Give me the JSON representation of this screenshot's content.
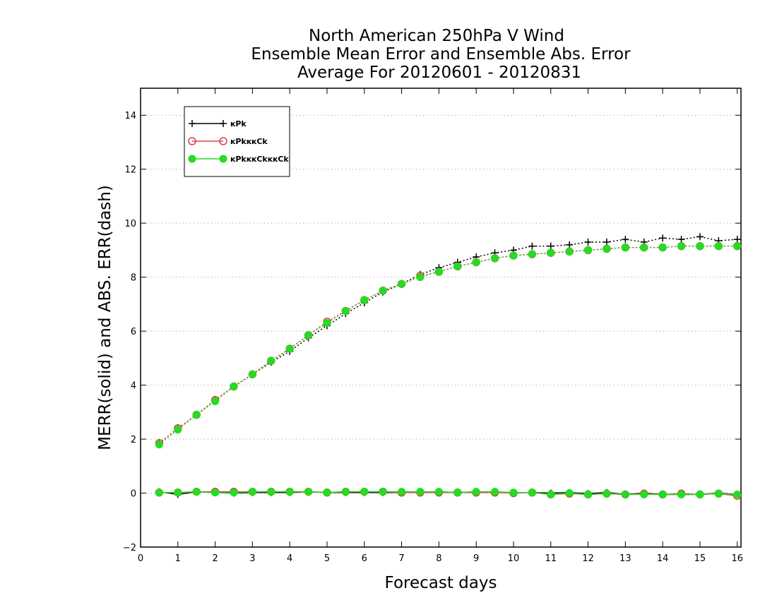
{
  "chart_data": {
    "type": "line",
    "title": [
      "North American 250hPa V Wind",
      "Ensemble Mean Error and Ensemble Abs. Error",
      "Average For 20120601 - 20120831"
    ],
    "xlabel": "Forecast days",
    "ylabel": "MERR(solid) and ABS. ERR(dash)",
    "xlim": [
      0,
      16.1
    ],
    "ylim": [
      -2,
      15
    ],
    "xticks": [
      "0",
      "1",
      "2",
      "3",
      "4",
      "5",
      "6",
      "7",
      "8",
      "9",
      "10",
      "11",
      "12",
      "13",
      "14",
      "15",
      "16"
    ],
    "yticks": [
      "−2",
      "0",
      "2",
      "4",
      "6",
      "8",
      "10",
      "12",
      "14"
    ],
    "grid": "horizontal dotted",
    "legend": {
      "placement": "top-left",
      "entries": [
        "ĸPk",
        "ĸPkĸĸCk",
        "ĸPkĸĸCkĸĸCk"
      ]
    },
    "x": [
      0.5,
      1,
      1.5,
      2,
      2.5,
      3,
      3.5,
      4,
      4.5,
      5,
      5.5,
      6,
      6.5,
      7,
      7.5,
      8,
      8.5,
      9,
      9.5,
      10,
      10.5,
      11,
      11.5,
      12,
      12.5,
      13,
      13.5,
      14,
      14.5,
      15,
      15.5,
      16
    ],
    "series": [
      {
        "color": "#000000",
        "marker": "plus",
        "mean_error": [
          0.05,
          -0.05,
          0.05,
          0.02,
          0.0,
          0.02,
          0.02,
          0.02,
          0.05,
          0.02,
          0.02,
          0.02,
          0.02,
          0.02,
          0.02,
          0.05,
          0.02,
          0.05,
          0.02,
          0.02,
          0.02,
          0.0,
          0.02,
          -0.02,
          0.02,
          -0.05,
          0.0,
          -0.05,
          -0.05,
          -0.05,
          0.0,
          -0.05
        ],
        "abs_error": [
          1.85,
          2.4,
          2.9,
          3.45,
          3.95,
          4.4,
          4.85,
          5.25,
          5.75,
          6.2,
          6.65,
          7.05,
          7.45,
          7.75,
          8.1,
          8.35,
          8.55,
          8.75,
          8.9,
          9.0,
          9.15,
          9.15,
          9.2,
          9.3,
          9.3,
          9.4,
          9.3,
          9.45,
          9.4,
          9.5,
          9.35,
          9.4
        ]
      },
      {
        "color": "#e04040",
        "marker": "open-circle",
        "mean_error": [
          0.02,
          0.02,
          0.05,
          0.05,
          0.05,
          0.05,
          0.05,
          0.05,
          0.05,
          0.02,
          0.05,
          0.05,
          0.05,
          0.02,
          0.02,
          0.02,
          0.02,
          0.02,
          0.02,
          0.0,
          0.02,
          -0.05,
          -0.02,
          -0.05,
          -0.02,
          -0.05,
          -0.02,
          -0.05,
          -0.02,
          -0.05,
          -0.02,
          -0.1
        ],
        "abs_error": [
          1.85,
          2.4,
          2.9,
          3.45,
          3.95,
          4.4,
          4.9,
          5.35,
          5.85,
          6.35,
          6.75,
          7.15,
          7.5,
          7.75,
          8.05,
          8.2,
          8.4,
          8.55,
          8.7,
          8.8,
          8.85,
          8.9,
          8.95,
          9.0,
          9.05,
          9.1,
          9.1,
          9.1,
          9.15,
          9.15,
          9.15,
          9.15
        ]
      },
      {
        "color": "#22dd22",
        "marker": "filled-circle",
        "mean_error": [
          0.02,
          0.02,
          0.05,
          0.02,
          0.02,
          0.05,
          0.05,
          0.05,
          0.05,
          0.02,
          0.05,
          0.05,
          0.05,
          0.05,
          0.05,
          0.05,
          0.02,
          0.05,
          0.05,
          0.02,
          0.02,
          -0.05,
          0.0,
          -0.05,
          -0.02,
          -0.05,
          -0.05,
          -0.05,
          -0.05,
          -0.05,
          -0.02,
          -0.05
        ],
        "abs_error": [
          1.8,
          2.35,
          2.9,
          3.4,
          3.95,
          4.4,
          4.9,
          5.35,
          5.85,
          6.3,
          6.75,
          7.15,
          7.5,
          7.75,
          8.0,
          8.2,
          8.4,
          8.55,
          8.7,
          8.8,
          8.85,
          8.9,
          8.95,
          9.0,
          9.05,
          9.1,
          9.1,
          9.1,
          9.15,
          9.15,
          9.15,
          9.15
        ]
      }
    ]
  }
}
